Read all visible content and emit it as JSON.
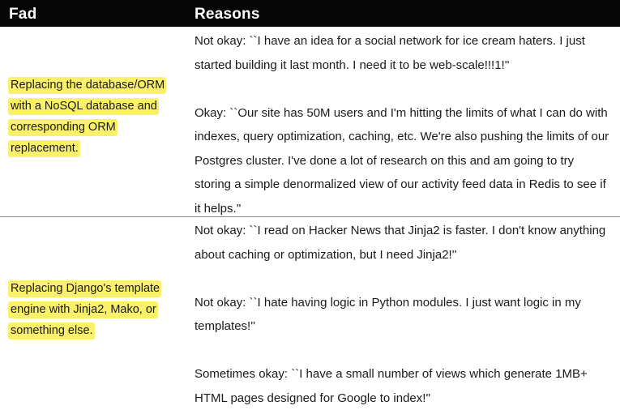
{
  "header": {
    "fad": "Fad",
    "reasons": "Reasons"
  },
  "rows": [
    {
      "fad": "Replacing the database/ORM with a NoSQL database and corresponding ORM replacement.",
      "reasons": [
        "Not okay: ``I have an idea for a social network for ice cream haters. I just started building it last month. I need it to be web-scale!!!1!''",
        "Okay: ``Our site has 50M users and I'm hitting the limits of what I can do with indexes, query optimization, caching, etc. We're also pushing the limits of our Postgres cluster. I've done a lot of research on this and am going to try storing a simple denormalized view of our activity feed data in Redis to see if it helps.''"
      ]
    },
    {
      "fad": "Replacing Django's template engine with Jinja2, Mako, or something else.",
      "reasons": [
        "Not okay: ``I read on Hacker News that Jinja2 is faster. I don't know anything about caching or optimization, but I need Jinja2!''",
        "Not okay: ``I hate having logic in Python modules. I just want logic in my templates!''",
        "Sometimes okay: ``I have a small number of views which generate 1MB+ HTML pages designed for Google to index!''"
      ]
    }
  ],
  "colors": {
    "header_bg": "#050505",
    "header_text": "#ffffff",
    "highlight": "#fbf06a",
    "divider": "#8a8a8a"
  }
}
